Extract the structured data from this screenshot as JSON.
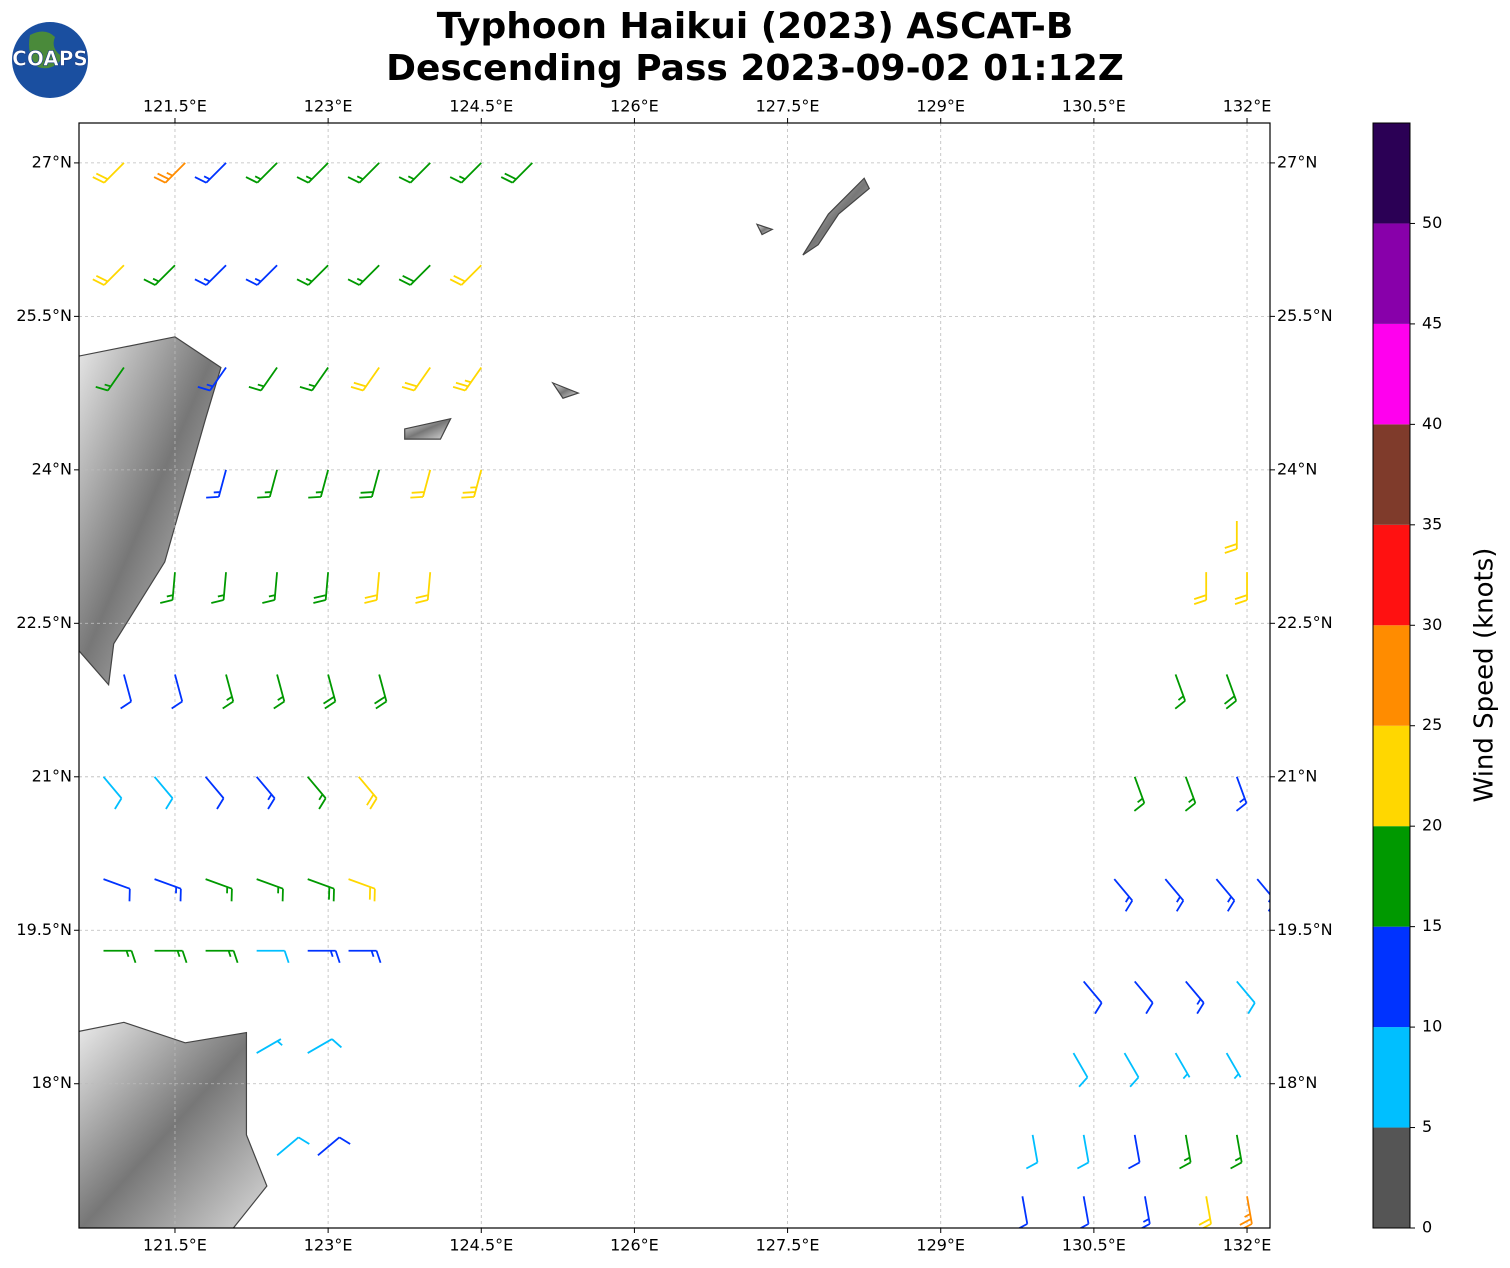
{
  "map": {
    "title": "Typhoon Haikui (2023) ASCAT-B",
    "subtitle": "Descending Pass 2023-09-02 01:12Z",
    "logo": "COAPS",
    "lon_lim": [
      120.56,
      132.225
    ],
    "lat_lim": [
      16.59,
      27.39
    ],
    "lon_ticks": [
      {
        "value": 121.5,
        "label": "121.5°E"
      },
      {
        "value": 123,
        "label": "123°E"
      },
      {
        "value": 124.5,
        "label": "124.5°E"
      },
      {
        "value": 126,
        "label": "126°E"
      },
      {
        "value": 127.5,
        "label": "127.5°E"
      },
      {
        "value": 129,
        "label": "129°E"
      },
      {
        "value": 130.5,
        "label": "130.5°E"
      },
      {
        "value": 132,
        "label": "132°E"
      }
    ],
    "lat_ticks": [
      {
        "value": 18,
        "label": "18°N"
      },
      {
        "value": 19.5,
        "label": "19.5°N"
      },
      {
        "value": 21,
        "label": "21°N"
      },
      {
        "value": 22.5,
        "label": "22.5°N"
      },
      {
        "value": 24,
        "label": "24°N"
      },
      {
        "value": 25.5,
        "label": "25.5°N"
      },
      {
        "value": 27,
        "label": "27°N"
      }
    ],
    "grid": true,
    "colorbar": {
      "label": "Wind Speed (knots)",
      "bounds": [
        0,
        5,
        10,
        15,
        20,
        25,
        30,
        35,
        40,
        45,
        50,
        55
      ],
      "colors": [
        "#555555",
        "#00bfff",
        "#0033ff",
        "#009900",
        "#ffd700",
        "#ff8c00",
        "#ff1111",
        "#7f3b2b",
        "#ff00ee",
        "#8800aa",
        "#2b0055"
      ],
      "ticks": [
        0,
        5,
        10,
        15,
        20,
        25,
        30,
        35,
        40,
        45,
        50
      ]
    },
    "barbs": [
      [
        121.0,
        27.0,
        22,
        225
      ],
      [
        121.6,
        27.0,
        27,
        225
      ],
      [
        122.0,
        27.0,
        14,
        225
      ],
      [
        122.5,
        27.0,
        16,
        225
      ],
      [
        123.0,
        27.0,
        17,
        225
      ],
      [
        123.5,
        27.0,
        16,
        225
      ],
      [
        124.0,
        27.0,
        17,
        225
      ],
      [
        124.5,
        27.0,
        17,
        225
      ],
      [
        125.0,
        27.0,
        18,
        225
      ],
      [
        121.0,
        26.0,
        21,
        225
      ],
      [
        121.5,
        26.0,
        17,
        225
      ],
      [
        122.0,
        26.0,
        14,
        225
      ],
      [
        122.5,
        26.0,
        13,
        225
      ],
      [
        123.0,
        26.0,
        16,
        225
      ],
      [
        123.5,
        26.0,
        17,
        225
      ],
      [
        124.0,
        26.0,
        18,
        225
      ],
      [
        124.5,
        26.0,
        22,
        225
      ],
      [
        121.0,
        25.0,
        16,
        215
      ],
      [
        122.0,
        25.0,
        13,
        215
      ],
      [
        122.5,
        25.0,
        16,
        215
      ],
      [
        123.0,
        25.0,
        17,
        215
      ],
      [
        123.5,
        25.0,
        21,
        215
      ],
      [
        124.0,
        25.0,
        22,
        215
      ],
      [
        124.5,
        25.0,
        23,
        215
      ],
      [
        122.0,
        24.0,
        13,
        195
      ],
      [
        122.5,
        24.0,
        17,
        195
      ],
      [
        123.0,
        24.0,
        17,
        195
      ],
      [
        123.5,
        24.0,
        18,
        195
      ],
      [
        124.0,
        24.0,
        22,
        195
      ],
      [
        124.5,
        24.0,
        23,
        195
      ],
      [
        121.5,
        23.0,
        17,
        185
      ],
      [
        122.0,
        23.0,
        17,
        185
      ],
      [
        122.5,
        23.0,
        17,
        185
      ],
      [
        123.0,
        23.0,
        18,
        185
      ],
      [
        123.5,
        23.0,
        21,
        185
      ],
      [
        124.0,
        23.0,
        22,
        185
      ],
      [
        121.0,
        22.0,
        11,
        165
      ],
      [
        121.5,
        22.0,
        12,
        165
      ],
      [
        122.0,
        22.0,
        16,
        165
      ],
      [
        122.5,
        22.0,
        17,
        165
      ],
      [
        123.0,
        22.0,
        18,
        165
      ],
      [
        123.5,
        22.0,
        19,
        165
      ],
      [
        120.8,
        21.0,
        8,
        140
      ],
      [
        121.3,
        21.0,
        9,
        140
      ],
      [
        121.8,
        21.0,
        12,
        140
      ],
      [
        122.3,
        21.0,
        14,
        140
      ],
      [
        122.8,
        21.0,
        17,
        140
      ],
      [
        123.3,
        21.0,
        21,
        140
      ],
      [
        120.8,
        20.0,
        12,
        110
      ],
      [
        121.3,
        20.0,
        13,
        110
      ],
      [
        121.8,
        20.0,
        16,
        110
      ],
      [
        122.3,
        20.0,
        17,
        110
      ],
      [
        122.8,
        20.0,
        18,
        110
      ],
      [
        123.2,
        20.0,
        22,
        110
      ],
      [
        120.8,
        19.3,
        17,
        90
      ],
      [
        121.3,
        19.3,
        17,
        90
      ],
      [
        121.8,
        19.3,
        16,
        90
      ],
      [
        122.3,
        19.3,
        9,
        90
      ],
      [
        122.8,
        19.3,
        13,
        90
      ],
      [
        123.2,
        19.3,
        13,
        90
      ],
      [
        122.3,
        18.3,
        6,
        60
      ],
      [
        122.8,
        18.3,
        8,
        60
      ],
      [
        122.5,
        17.3,
        8,
        50
      ],
      [
        122.9,
        17.3,
        12,
        50
      ],
      [
        131.9,
        23.5,
        22,
        180
      ],
      [
        131.6,
        23.0,
        21,
        180
      ],
      [
        132.0,
        23.0,
        22,
        180
      ],
      [
        131.3,
        22.0,
        17,
        160
      ],
      [
        131.8,
        22.0,
        18,
        160
      ],
      [
        130.9,
        21.0,
        16,
        160
      ],
      [
        131.4,
        21.0,
        17,
        160
      ],
      [
        131.9,
        21.0,
        14,
        160
      ],
      [
        130.7,
        20.0,
        13,
        140
      ],
      [
        131.2,
        20.0,
        14,
        140
      ],
      [
        131.7,
        20.0,
        14,
        140
      ],
      [
        132.1,
        20.0,
        13,
        140
      ],
      [
        130.4,
        19.0,
        12,
        140
      ],
      [
        130.9,
        19.0,
        12,
        140
      ],
      [
        131.4,
        19.0,
        13,
        140
      ],
      [
        131.9,
        19.0,
        9,
        140
      ],
      [
        130.3,
        18.3,
        8,
        150
      ],
      [
        130.8,
        18.3,
        8,
        150
      ],
      [
        131.3,
        18.3,
        7,
        150
      ],
      [
        131.8,
        18.3,
        7,
        150
      ],
      [
        129.9,
        17.5,
        8,
        170
      ],
      [
        130.4,
        17.5,
        9,
        170
      ],
      [
        130.9,
        17.5,
        12,
        170
      ],
      [
        131.4,
        17.5,
        17,
        170
      ],
      [
        131.9,
        17.5,
        16,
        170
      ],
      [
        129.8,
        16.9,
        12,
        170
      ],
      [
        130.4,
        16.9,
        12,
        170
      ],
      [
        131.0,
        16.9,
        14,
        170
      ],
      [
        131.6,
        16.9,
        22,
        170
      ],
      [
        132.0,
        16.9,
        27,
        170
      ]
    ]
  }
}
